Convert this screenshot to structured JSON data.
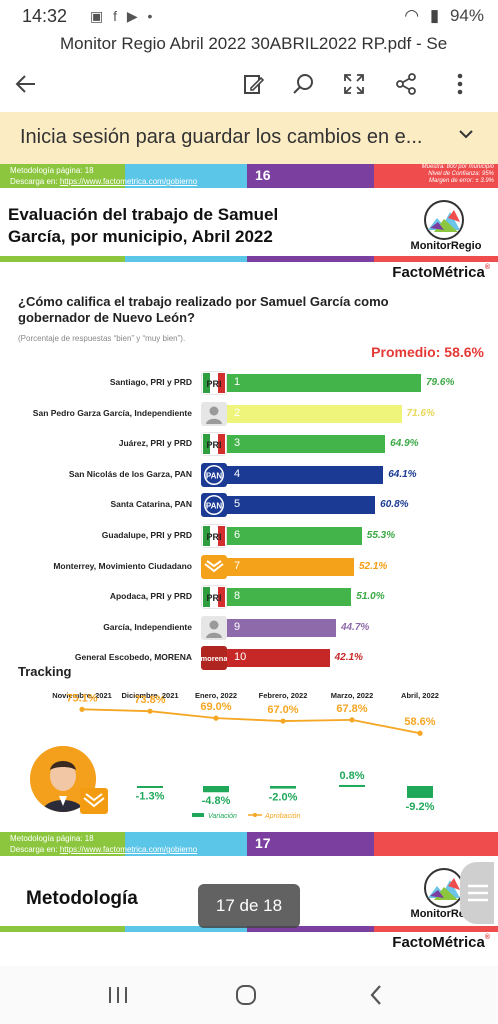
{
  "status_bar": {
    "time": "14:32",
    "battery": "94%"
  },
  "toolbar": {
    "title": "Monitor Regio Abril 2022 30ABRIL2022 RP.pdf - Se"
  },
  "banner": {
    "text": "Inicia sesión para guardar los cambios en e..."
  },
  "prev_footer": {
    "meta_line1": "Metodología página: 18",
    "meta_line2_prefix": "Descarga en: ",
    "meta_link": "https://www.factometrica.com/gobierno",
    "page_number": "16",
    "sample_line1": "Muestra: 800 por municipio",
    "sample_line2": "Nivel de Confianza: 95%",
    "sample_line3": "Margen de error: ± 3.9%"
  },
  "slide": {
    "title": "Evaluación del trabajo de Samuel García, por municipio, Abril 2022",
    "monitor_regio_logo_text": "MonitorRegio",
    "factometrica_main": "FactoMétrica",
    "question": "¿Cómo califica el trabajo realizado por Samuel García como gobernador de Nuevo León?",
    "subquestion": "(Porcentaje de respuestas “bien” y “muy bien”).",
    "promedio": "Promedio: 58.6%"
  },
  "chart_data": [
    {
      "type": "bar",
      "categories": [
        "Santiago, PRI y PRD",
        "San Pedro Garza García, Independiente",
        "Juárez, PRI y PRD",
        "San Nicolás de los Garza, PAN",
        "Santa Catarina, PAN",
        "Guadalupe, PRI y PRD",
        "Monterrey, Movimiento Ciudadano",
        "Apodaca, PRI y PRD",
        "García, Independiente",
        "General Escobedo, MORENA"
      ],
      "ranks": [
        "1",
        "2",
        "3",
        "4",
        "5",
        "6",
        "7",
        "8",
        "9",
        "10"
      ],
      "values": [
        79.6,
        71.6,
        64.9,
        64.1,
        60.8,
        55.3,
        52.1,
        51.0,
        44.7,
        42.1
      ],
      "labels": [
        "79.6%",
        "71.6%",
        "64.9%",
        "64.1%",
        "60.8%",
        "55.3%",
        "52.1%",
        "51.0%",
        "44.7%",
        "42.1%"
      ],
      "parties": [
        "PRI",
        "IND",
        "PRI",
        "PAN",
        "PAN",
        "PRI",
        "MC",
        "PRI",
        "IND",
        "MORENA"
      ],
      "colors": [
        "#43b449",
        "#eef57a",
        "#43b449",
        "#1b3a94",
        "#1b3a94",
        "#43b449",
        "#f5a21b",
        "#43b449",
        "#8e6aab",
        "#c62828"
      ],
      "label_colors": [
        "#3aa844",
        "#e8d85a",
        "#3aa844",
        "#1b3a94",
        "#1b3a94",
        "#3aa844",
        "#f39c12",
        "#3aa844",
        "#8e6aab",
        "#c62828"
      ],
      "party_labels": {
        "PRI": "PRI",
        "PAN": "PAN",
        "MORENA": "morena"
      },
      "xlim": [
        0,
        100
      ]
    },
    {
      "type": "line",
      "title": "Tracking",
      "categories": [
        "Noviembre, 2021",
        "Diciembre, 2021",
        "Enero, 2022",
        "Febrero, 2022",
        "Marzo, 2022",
        "Abril, 2022"
      ],
      "series": [
        {
          "name": "Aprobación",
          "values": [
            75.1,
            73.8,
            69.0,
            67.0,
            67.8,
            58.6
          ],
          "labels": [
            "75.1%",
            "73.8%",
            "69.0%",
            "67.0%",
            "67.8%",
            "58.6%"
          ],
          "color": "#f5a623"
        },
        {
          "name": "Variación",
          "values": [
            null,
            -1.3,
            -4.8,
            -2.0,
            0.8,
            -9.2
          ],
          "labels": [
            "",
            "-1.3%",
            "-4.8%",
            "-2.0%",
            "0.8%",
            "-9.2%"
          ],
          "color": "#1fa85a"
        }
      ]
    }
  ],
  "cur_footer": {
    "meta_line1": "Metodología página: 18",
    "meta_line2_prefix": "Descarga en: ",
    "meta_link": "https://www.factometrica.com/gobierno",
    "page_number": "17"
  },
  "next_slide": {
    "title": "Metodología",
    "monitor_regio_logo_text": "MonitorRegio",
    "factometrica": "FactoMétrica"
  },
  "pager": {
    "text": "17 de 18"
  },
  "colors": {
    "green": "#8cc63f",
    "cyan": "#5bc6e8",
    "purple": "#7b3fa0",
    "red": "#ef4d4d",
    "banner": "#fbecc4"
  }
}
